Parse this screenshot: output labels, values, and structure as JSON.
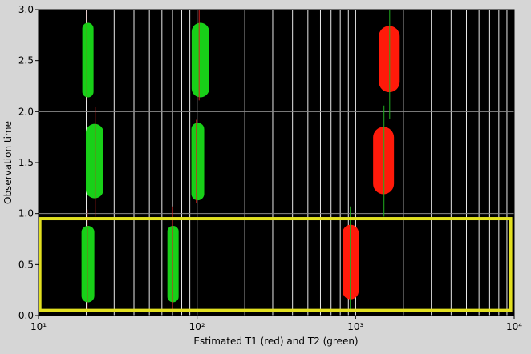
{
  "chart_data": {
    "type": "capsule",
    "xlabel": "Estimated T1 (red) and T2 (green)",
    "ylabel": "Observation time",
    "xscale": "log",
    "xlim": [
      10,
      10000
    ],
    "ylim": [
      0,
      3
    ],
    "xticks": [
      {
        "value": 10,
        "label": "10¹"
      },
      {
        "value": 100,
        "label": "10²"
      },
      {
        "value": 1000,
        "label": "10³"
      },
      {
        "value": 10000,
        "label": "10⁴"
      }
    ],
    "yticks": [
      {
        "value": 0,
        "label": "0.0"
      },
      0.5,
      {
        "value": 1,
        "label": "1.0"
      },
      1.5,
      {
        "value": 2,
        "label": "2.0"
      },
      2.5,
      {
        "value": 3,
        "label": "3.0"
      }
    ],
    "x_minor_grid": [
      20,
      30,
      40,
      50,
      60,
      70,
      80,
      90,
      200,
      300,
      400,
      500,
      600,
      700,
      800,
      900,
      2000,
      3000,
      4000,
      5000,
      6000,
      7000,
      8000,
      9000
    ],
    "y_grid": [
      1,
      2
    ],
    "capsules": [
      {
        "x": 20.5,
        "y": [
          2.14,
          2.87
        ],
        "size": 14,
        "color": "#18d018"
      },
      {
        "x": 105,
        "y": [
          2.14,
          2.87
        ],
        "size": 22,
        "color": "#18d018"
      },
      {
        "x": 1630,
        "y": [
          2.19,
          2.84
        ],
        "size": 26,
        "color": "#ff1a0a"
      },
      {
        "x": 22.6,
        "y": [
          1.15,
          1.88
        ],
        "size": 22,
        "color": "#18d018"
      },
      {
        "x": 101,
        "y": [
          1.13,
          1.89
        ],
        "size": 16,
        "color": "#18d018"
      },
      {
        "x": 1500,
        "y": [
          1.19,
          1.85
        ],
        "size": 26,
        "color": "#ff1a0a"
      },
      {
        "x": 20.5,
        "y": [
          0.13,
          0.88
        ],
        "size": 16,
        "color": "#18d018"
      },
      {
        "x": 70.5,
        "y": [
          0.13,
          0.88
        ],
        "size": 14,
        "color": "#18d018"
      },
      {
        "x": 930,
        "y": [
          0.16,
          0.89
        ],
        "size": 20,
        "color": "#ff1a0a"
      }
    ],
    "lines": [
      {
        "x": 20.2,
        "y": [
          2.11,
          3.0
        ],
        "color": "#d82020"
      },
      {
        "x": 103,
        "y": [
          2.11,
          3.0
        ],
        "color": "#d82020"
      },
      {
        "x": 1640,
        "y": [
          1.93,
          3.0
        ],
        "color": "#20b020"
      },
      {
        "x": 22.8,
        "y": [
          0.97,
          2.05
        ],
        "color": "#d82020"
      },
      {
        "x": 99,
        "y": [
          1.1,
          1.92
        ],
        "color": "#d82020"
      },
      {
        "x": 1510,
        "y": [
          0.97,
          2.06
        ],
        "color": "#20b020"
      },
      {
        "x": 20.3,
        "y": [
          0.03,
          1.04
        ],
        "color": "#d82020"
      },
      {
        "x": 70,
        "y": [
          0.03,
          1.07
        ],
        "color": "#d82020"
      },
      {
        "x": 925,
        "y": [
          0.03,
          1.07
        ],
        "color": "#20b020"
      }
    ],
    "selection": {
      "x": [
        10.2,
        9500
      ],
      "y": [
        0.05,
        0.95
      ],
      "color": "#e2e020"
    }
  }
}
